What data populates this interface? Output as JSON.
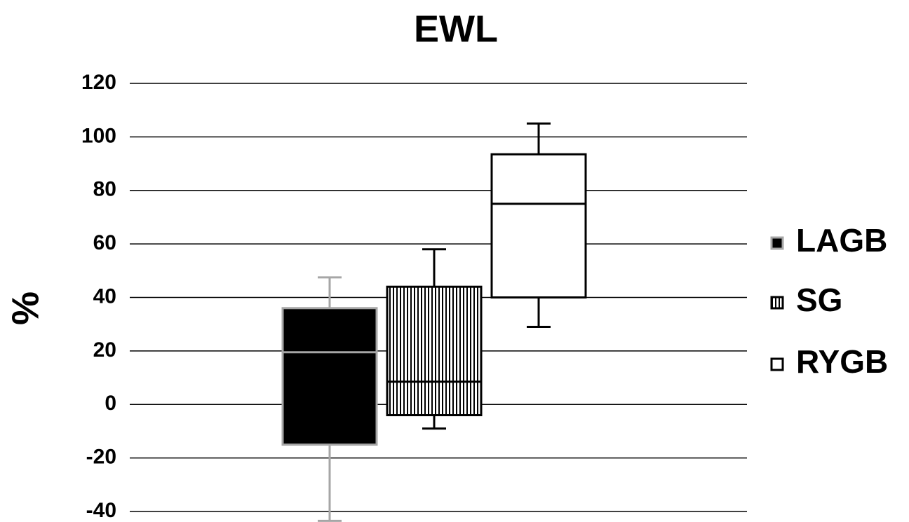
{
  "chart_data": {
    "type": "box",
    "title": "EWL",
    "y_label": "%",
    "ylim": [
      -40,
      120
    ],
    "yticks": [
      -40,
      -20,
      0,
      20,
      40,
      60,
      80,
      100,
      120
    ],
    "grid": true,
    "legend": "right",
    "series": [
      {
        "name": "LAGB",
        "color": "#000000",
        "stroke": "#a6a6a6",
        "min": -43.5,
        "q1": -15,
        "median": 19.5,
        "q3": 36,
        "max": 47.5
      },
      {
        "name": "SG",
        "color": "#ffffff",
        "stroke": "#000000",
        "pattern": "vertical-lines",
        "min": -9,
        "q1": -4,
        "median": 8.5,
        "q3": 44,
        "max": 58
      },
      {
        "name": "RYGB",
        "color": "#ffffff",
        "stroke": "#000000",
        "min": 29,
        "q1": 40,
        "median": 75,
        "q3": 93.5,
        "max": 105
      }
    ]
  }
}
